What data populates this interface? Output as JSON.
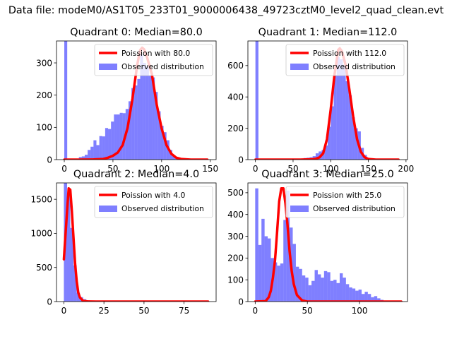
{
  "figure": {
    "suptitle": "Data file: modeM0/AS1T05_233T01_9000006438_49723cztM0_level2_quad_clean.evt"
  },
  "colors": {
    "bars": "#0000ff",
    "bars_alpha": 0.5,
    "curve": "#ff0000",
    "axes": "#000000"
  },
  "chart_data": [
    {
      "type": "bar",
      "title": "Quadrant 0: Median=80.0",
      "xlim": [
        -8,
        156
      ],
      "ylim": [
        0,
        368
      ],
      "xticks": [
        0,
        50,
        100,
        150
      ],
      "yticks": [
        0,
        100,
        200,
        300
      ],
      "legend": {
        "placement": "top-right",
        "entries": [
          "Poission with 80.0",
          "Observed distribution"
        ]
      },
      "histogram": {
        "bins": [
          [
            0,
            3,
            368
          ],
          [
            3,
            6,
            1
          ],
          [
            6,
            9,
            1
          ],
          [
            9,
            12,
            2
          ],
          [
            12,
            15,
            3
          ],
          [
            15,
            18,
            8
          ],
          [
            18,
            21,
            10
          ],
          [
            21,
            24,
            15
          ],
          [
            24,
            27,
            30
          ],
          [
            27,
            30,
            40
          ],
          [
            30,
            33,
            60
          ],
          [
            33,
            36,
            45
          ],
          [
            36,
            39,
            73
          ],
          [
            39,
            42,
            72
          ],
          [
            42,
            45,
            98
          ],
          [
            45,
            48,
            95
          ],
          [
            48,
            51,
            118
          ],
          [
            51,
            54,
            140
          ],
          [
            54,
            57,
            140
          ],
          [
            57,
            60,
            145
          ],
          [
            60,
            63,
            144
          ],
          [
            63,
            66,
            157
          ],
          [
            66,
            69,
            181
          ],
          [
            69,
            72,
            222
          ],
          [
            72,
            75,
            230
          ],
          [
            75,
            78,
            250
          ],
          [
            78,
            81,
            325
          ],
          [
            81,
            84,
            300
          ],
          [
            84,
            87,
            290
          ],
          [
            87,
            90,
            260
          ],
          [
            90,
            93,
            255
          ],
          [
            93,
            96,
            210
          ],
          [
            96,
            99,
            150
          ],
          [
            99,
            102,
            105
          ],
          [
            102,
            105,
            85
          ],
          [
            105,
            108,
            60
          ],
          [
            108,
            111,
            30
          ],
          [
            111,
            114,
            10
          ],
          [
            114,
            117,
            3
          ],
          [
            117,
            120,
            1
          ]
        ]
      },
      "curve": {
        "label": "Poission with 80.0",
        "x": [
          0,
          15,
          30,
          40,
          45,
          50,
          55,
          60,
          65,
          70,
          75,
          78,
          80,
          82,
          85,
          90,
          95,
          100,
          105,
          110,
          115,
          120,
          130,
          147
        ],
        "y": [
          0,
          0,
          0.5,
          2,
          6,
          12,
          22,
          45,
          98,
          188,
          295,
          340,
          347,
          342,
          318,
          265,
          170,
          97,
          45,
          18,
          6,
          2,
          0,
          0
        ]
      }
    },
    {
      "type": "bar",
      "title": "Quadrant 1: Median=112.0",
      "xlim": [
        -10,
        202
      ],
      "ylim": [
        0,
        757
      ],
      "xticks": [
        0,
        50,
        100,
        150,
        200
      ],
      "yticks": [
        0,
        200,
        400,
        600
      ],
      "legend": {
        "placement": "top-right",
        "entries": [
          "Poission with 112.0",
          "Observed distribution"
        ]
      },
      "histogram": {
        "bins": [
          [
            0,
            4,
            757
          ],
          [
            4,
            8,
            2
          ],
          [
            8,
            12,
            1
          ],
          [
            12,
            16,
            1
          ],
          [
            16,
            20,
            1
          ],
          [
            20,
            24,
            1
          ],
          [
            24,
            28,
            2
          ],
          [
            28,
            32,
            2
          ],
          [
            32,
            36,
            2
          ],
          [
            36,
            40,
            2
          ],
          [
            40,
            44,
            3
          ],
          [
            44,
            48,
            4
          ],
          [
            48,
            52,
            5
          ],
          [
            52,
            56,
            5
          ],
          [
            56,
            60,
            6
          ],
          [
            60,
            64,
            7
          ],
          [
            64,
            68,
            10
          ],
          [
            68,
            72,
            12
          ],
          [
            72,
            76,
            15
          ],
          [
            76,
            80,
            22
          ],
          [
            80,
            84,
            40
          ],
          [
            84,
            88,
            52
          ],
          [
            88,
            92,
            62
          ],
          [
            92,
            96,
            90
          ],
          [
            96,
            100,
            210
          ],
          [
            100,
            104,
            340
          ],
          [
            104,
            108,
            540
          ],
          [
            108,
            112,
            655
          ],
          [
            112,
            116,
            640
          ],
          [
            116,
            120,
            605
          ],
          [
            120,
            124,
            500
          ],
          [
            124,
            128,
            410
          ],
          [
            128,
            132,
            270
          ],
          [
            132,
            136,
            200
          ],
          [
            136,
            140,
            180
          ],
          [
            140,
            144,
            75
          ],
          [
            144,
            148,
            30
          ],
          [
            148,
            152,
            10
          ],
          [
            152,
            156,
            3
          ],
          [
            156,
            160,
            1
          ]
        ]
      },
      "curve": {
        "label": "Poission with 112.0",
        "x": [
          0,
          60,
          75,
          80,
          85,
          90,
          95,
          100,
          105,
          110,
          112,
          115,
          120,
          125,
          130,
          135,
          140,
          145,
          150,
          160,
          190
        ],
        "y": [
          0,
          0,
          2,
          5,
          14,
          40,
          130,
          320,
          540,
          700,
          710,
          690,
          600,
          440,
          270,
          130,
          50,
          15,
          4,
          0,
          0
        ]
      }
    },
    {
      "type": "bar",
      "title": "Quadrant 2: Median=4.0",
      "xlim": [
        -4.6,
        95
      ],
      "ylim": [
        0,
        1740
      ],
      "xticks": [
        0,
        25,
        50,
        75
      ],
      "yticks": [
        0,
        500,
        1000,
        1500
      ],
      "legend": {
        "placement": "top-right",
        "entries": [
          "Poission with 4.0",
          "Observed distribution"
        ]
      },
      "histogram": {
        "bins": [
          [
            0,
            2,
            1740
          ],
          [
            2,
            4,
            1560
          ],
          [
            4,
            6,
            1080
          ],
          [
            6,
            8,
            530
          ],
          [
            8,
            10,
            130
          ],
          [
            10,
            12,
            65
          ],
          [
            12,
            14,
            35
          ],
          [
            14,
            16,
            18
          ],
          [
            16,
            18,
            10
          ],
          [
            18,
            20,
            6
          ],
          [
            20,
            22,
            4
          ],
          [
            22,
            24,
            3
          ],
          [
            24,
            26,
            2
          ],
          [
            26,
            28,
            2
          ],
          [
            28,
            30,
            1
          ],
          [
            30,
            32,
            1
          ],
          [
            32,
            34,
            1
          ],
          [
            34,
            36,
            1
          ],
          [
            36,
            90,
            1
          ]
        ]
      },
      "curve": {
        "label": "Poission with 4.0",
        "x": [
          0,
          2,
          3,
          4,
          5,
          6,
          7,
          8,
          9,
          10,
          12,
          15,
          20,
          40,
          90
        ],
        "y": [
          620,
          1330,
          1660,
          1640,
          1320,
          940,
          560,
          300,
          130,
          60,
          10,
          1,
          0,
          0,
          0
        ]
      }
    },
    {
      "type": "bar",
      "title": "Quadrant 3: Median=25.0",
      "xlim": [
        -7,
        146
      ],
      "ylim": [
        0,
        545
      ],
      "xticks": [
        0,
        50,
        100
      ],
      "yticks": [
        0,
        100,
        200,
        300,
        400,
        500
      ],
      "legend": {
        "placement": "top-right",
        "entries": [
          "Poission with 25.0",
          "Observed distribution"
        ]
      },
      "histogram": {
        "bins": [
          [
            0,
            3,
            520
          ],
          [
            3,
            6,
            260
          ],
          [
            6,
            9,
            380
          ],
          [
            9,
            12,
            300
          ],
          [
            12,
            15,
            290
          ],
          [
            15,
            18,
            200
          ],
          [
            18,
            21,
            180
          ],
          [
            21,
            24,
            165
          ],
          [
            24,
            27,
            175
          ],
          [
            27,
            30,
            375
          ],
          [
            30,
            33,
            510
          ],
          [
            33,
            36,
            340
          ],
          [
            36,
            39,
            265
          ],
          [
            39,
            42,
            160
          ],
          [
            42,
            45,
            150
          ],
          [
            45,
            48,
            120
          ],
          [
            48,
            51,
            110
          ],
          [
            51,
            54,
            75
          ],
          [
            54,
            57,
            95
          ],
          [
            57,
            60,
            145
          ],
          [
            60,
            63,
            125
          ],
          [
            63,
            66,
            110
          ],
          [
            66,
            69,
            140
          ],
          [
            69,
            72,
            135
          ],
          [
            72,
            75,
            95
          ],
          [
            75,
            78,
            100
          ],
          [
            78,
            81,
            85
          ],
          [
            81,
            84,
            130
          ],
          [
            84,
            87,
            110
          ],
          [
            87,
            90,
            80
          ],
          [
            90,
            93,
            65
          ],
          [
            93,
            96,
            60
          ],
          [
            96,
            99,
            50
          ],
          [
            99,
            102,
            55
          ],
          [
            102,
            105,
            35
          ],
          [
            105,
            108,
            45
          ],
          [
            108,
            111,
            35
          ],
          [
            111,
            114,
            20
          ],
          [
            114,
            117,
            25
          ],
          [
            117,
            120,
            15
          ],
          [
            120,
            123,
            8
          ],
          [
            123,
            126,
            4
          ],
          [
            126,
            129,
            2
          ],
          [
            129,
            132,
            1
          ],
          [
            132,
            135,
            1
          ]
        ]
      },
      "curve": {
        "label": "Poission with 25.0",
        "x": [
          0,
          10,
          13,
          15,
          17,
          19,
          21,
          23,
          25,
          27,
          29,
          31,
          33,
          35,
          37,
          40,
          45,
          50,
          60,
          140
        ],
        "y": [
          0,
          2,
          20,
          50,
          110,
          190,
          320,
          460,
          520,
          520,
          450,
          350,
          230,
          140,
          80,
          30,
          5,
          0,
          0,
          0
        ]
      }
    }
  ]
}
